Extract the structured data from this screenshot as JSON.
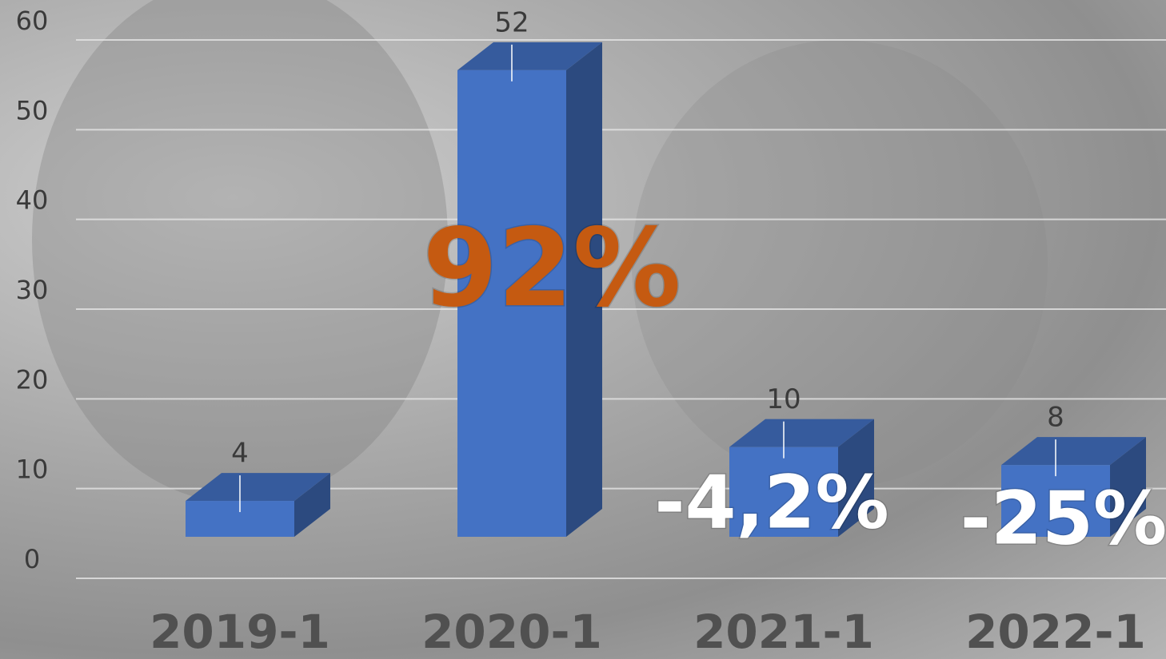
{
  "chart_data": {
    "type": "bar3d",
    "categories": [
      "2019-1",
      "2020-1",
      "2021-1",
      "2022-1"
    ],
    "values": [
      4,
      52,
      10,
      8
    ],
    "color": "#4472c4",
    "ylim": [
      0,
      60
    ],
    "yticks": [
      0,
      10,
      20,
      30,
      40,
      50,
      60
    ],
    "grid": true,
    "annotations": [
      {
        "text": "92%",
        "category": 1,
        "color": "#c55a11"
      },
      {
        "text": "-4,2%",
        "category": 2,
        "color": "#ffffff"
      },
      {
        "text": "-25%",
        "category": 3,
        "color": "#ffffff"
      }
    ]
  }
}
